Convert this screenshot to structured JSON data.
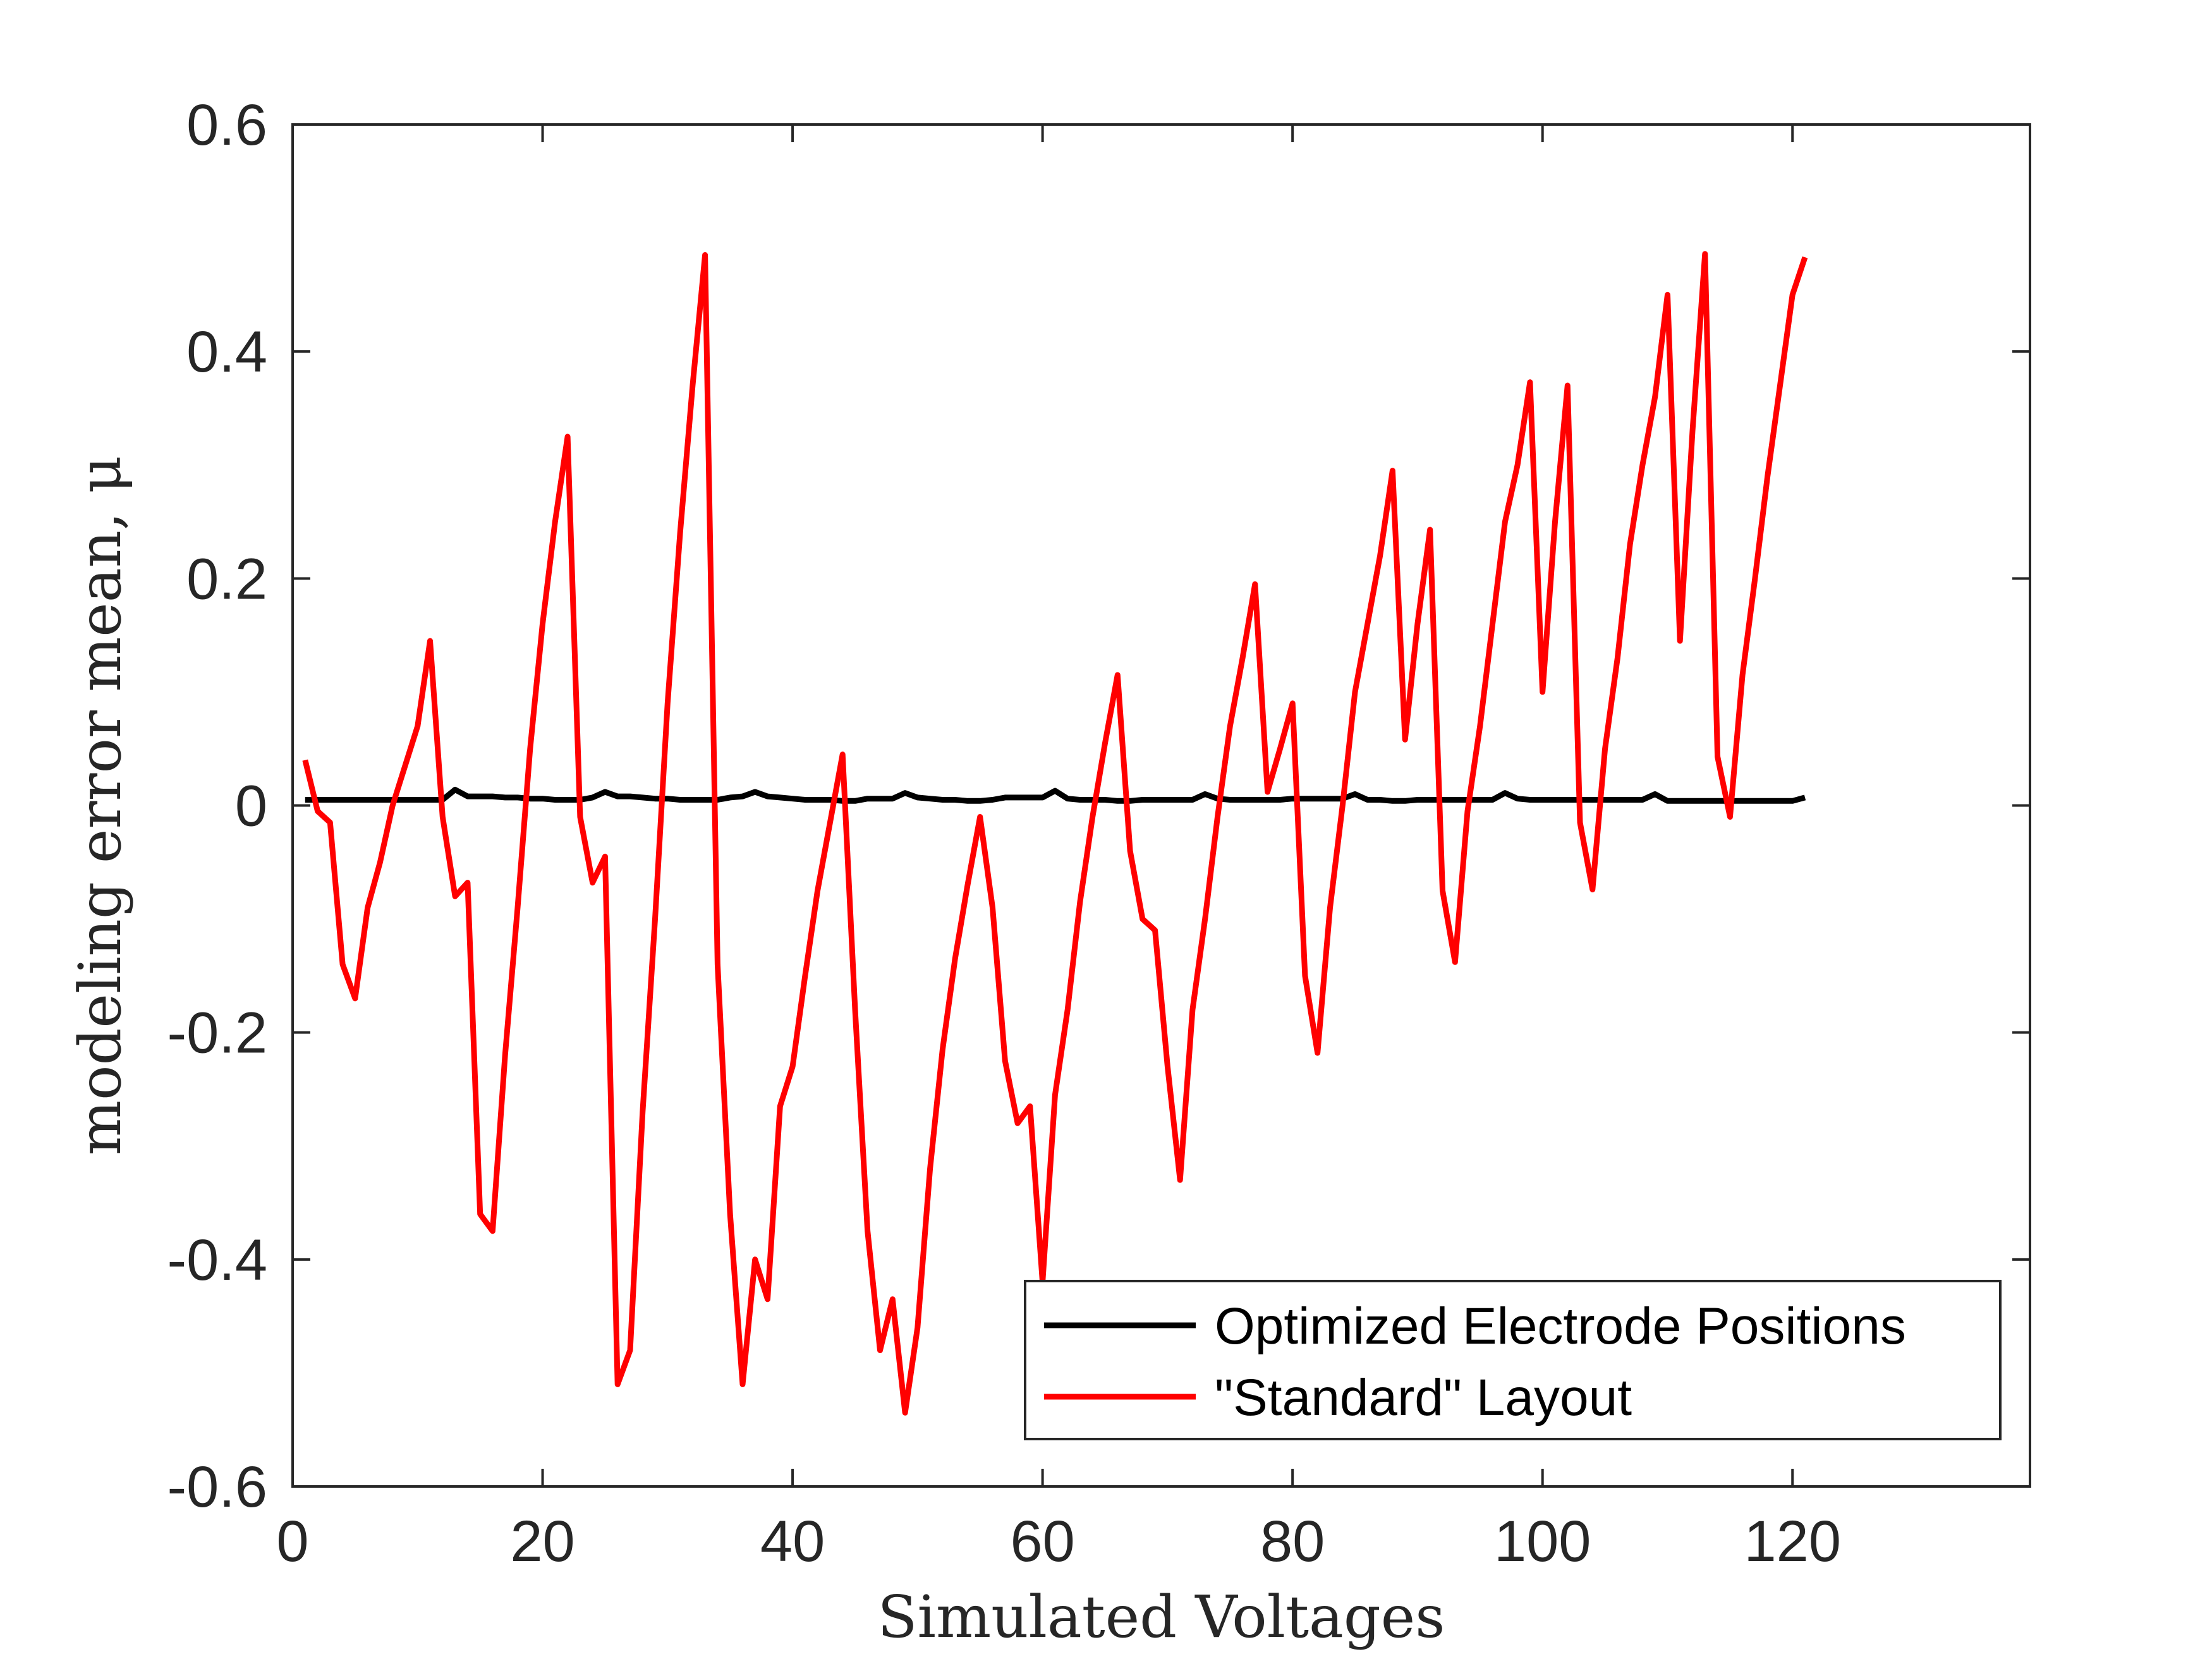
{
  "chart_data": {
    "type": "line",
    "xlabel": "Simulated Voltages",
    "ylabel": "modeling error mean, μ",
    "xlim": [
      0,
      139
    ],
    "ylim": [
      -0.6,
      0.6
    ],
    "xticks": [
      0,
      20,
      40,
      60,
      80,
      100,
      120
    ],
    "yticks": [
      -0.6,
      -0.4,
      -0.2,
      0,
      0.2,
      0.4,
      0.6
    ],
    "xtick_labels": [
      "0",
      "20",
      "40",
      "60",
      "80",
      "100",
      "120"
    ],
    "ytick_labels": [
      "-0.6",
      "-0.4",
      "-0.2",
      "0",
      "0.2",
      "0.4",
      "0.6"
    ],
    "grid": false,
    "legend_position": "bottom-right",
    "series": [
      {
        "name": "Optimized Electrode Positions",
        "color": "#000000",
        "x": [
          1,
          2,
          3,
          4,
          5,
          6,
          7,
          8,
          9,
          10,
          11,
          12,
          13,
          14,
          15,
          16,
          17,
          18,
          19,
          20,
          21,
          22,
          23,
          24,
          25,
          26,
          27,
          28,
          29,
          30,
          31,
          32,
          33,
          34,
          35,
          36,
          37,
          38,
          39,
          40,
          41,
          42,
          43,
          44,
          45,
          46,
          47,
          48,
          49,
          50,
          51,
          52,
          53,
          54,
          55,
          56,
          57,
          58,
          59,
          60,
          61,
          62,
          63,
          64,
          65,
          66,
          67,
          68,
          69,
          70,
          71,
          72,
          73,
          74,
          75,
          76,
          77,
          78,
          79,
          80,
          81,
          82,
          83,
          84,
          85,
          86,
          87,
          88,
          89,
          90,
          91,
          92,
          93,
          94,
          95,
          96,
          97,
          98,
          99,
          100,
          101,
          102,
          103,
          104,
          105,
          106,
          107,
          108,
          109,
          110,
          111,
          112,
          113,
          114,
          115,
          116,
          117,
          118,
          119,
          120,
          121
        ],
        "y": [
          0.005,
          0.005,
          0.005,
          0.005,
          0.005,
          0.005,
          0.005,
          0.005,
          0.005,
          0.005,
          0.005,
          0.005,
          0.014,
          0.008,
          0.008,
          0.008,
          0.007,
          0.007,
          0.006,
          0.006,
          0.005,
          0.005,
          0.005,
          0.007,
          0.012,
          0.008,
          0.008,
          0.007,
          0.006,
          0.006,
          0.005,
          0.005,
          0.005,
          0.005,
          0.007,
          0.008,
          0.012,
          0.008,
          0.007,
          0.006,
          0.005,
          0.005,
          0.005,
          0.004,
          0.004,
          0.006,
          0.006,
          0.006,
          0.011,
          0.007,
          0.006,
          0.005,
          0.005,
          0.004,
          0.004,
          0.005,
          0.007,
          0.007,
          0.007,
          0.007,
          0.013,
          0.006,
          0.005,
          0.005,
          0.005,
          0.004,
          0.004,
          0.005,
          0.005,
          0.005,
          0.005,
          0.005,
          0.01,
          0.006,
          0.005,
          0.005,
          0.005,
          0.005,
          0.005,
          0.006,
          0.006,
          0.006,
          0.006,
          0.006,
          0.01,
          0.005,
          0.005,
          0.004,
          0.004,
          0.005,
          0.005,
          0.005,
          0.005,
          0.005,
          0.005,
          0.005,
          0.011,
          0.006,
          0.005,
          0.005,
          0.005,
          0.005,
          0.005,
          0.005,
          0.005,
          0.005,
          0.005,
          0.005,
          0.01,
          0.004,
          0.004,
          0.004,
          0.004,
          0.004,
          0.004,
          0.004,
          0.004,
          0.004,
          0.004,
          0.004,
          0.007
        ]
      },
      {
        "name": "\"Standard\" Layout",
        "color": "#ff0000",
        "x": [
          1,
          2,
          3,
          4,
          5,
          6,
          7,
          8,
          9,
          10,
          11,
          12,
          13,
          14,
          15,
          16,
          17,
          18,
          19,
          20,
          21,
          22,
          23,
          24,
          25,
          26,
          27,
          28,
          29,
          30,
          31,
          32,
          33,
          34,
          35,
          36,
          37,
          38,
          39,
          40,
          41,
          42,
          43,
          44,
          45,
          46,
          47,
          48,
          49,
          50,
          51,
          52,
          53,
          54,
          55,
          56,
          57,
          58,
          59,
          60,
          61,
          62,
          63,
          64,
          65,
          66,
          67,
          68,
          69,
          70,
          71,
          72,
          73,
          74,
          75,
          76,
          77,
          78,
          79,
          80,
          81,
          82,
          83,
          84,
          85,
          86,
          87,
          88,
          89,
          90,
          91,
          92,
          93,
          94,
          95,
          96,
          97,
          98,
          99,
          100,
          101,
          102,
          103,
          104,
          105,
          106,
          107,
          108,
          109,
          110,
          111,
          112,
          113,
          114,
          115,
          116,
          117,
          118,
          119,
          120,
          121
        ],
        "y": [
          0.04,
          -0.005,
          -0.015,
          -0.14,
          -0.17,
          -0.09,
          -0.05,
          0.0,
          0.035,
          0.07,
          0.145,
          -0.01,
          -0.08,
          -0.068,
          -0.36,
          -0.375,
          -0.22,
          -0.09,
          0.05,
          0.16,
          0.25,
          0.325,
          -0.01,
          -0.068,
          -0.045,
          -0.51,
          -0.48,
          -0.27,
          -0.1,
          0.09,
          0.24,
          0.37,
          0.485,
          -0.14,
          -0.36,
          -0.51,
          -0.4,
          -0.435,
          -0.265,
          -0.23,
          -0.15,
          -0.075,
          -0.015,
          0.045,
          -0.18,
          -0.375,
          -0.48,
          -0.435,
          -0.535,
          -0.46,
          -0.32,
          -0.215,
          -0.135,
          -0.07,
          -0.01,
          -0.09,
          -0.225,
          -0.28,
          -0.265,
          -0.42,
          -0.255,
          -0.18,
          -0.085,
          -0.01,
          0.055,
          0.115,
          -0.04,
          -0.1,
          -0.11,
          -0.23,
          -0.33,
          -0.18,
          -0.1,
          -0.01,
          0.07,
          0.13,
          0.195,
          0.012,
          0.05,
          0.09,
          -0.15,
          -0.218,
          -0.09,
          0.0,
          0.1,
          0.16,
          0.22,
          0.295,
          0.058,
          0.16,
          0.243,
          -0.075,
          -0.138,
          -0.005,
          0.07,
          0.16,
          0.25,
          0.3,
          0.373,
          0.1,
          0.25,
          0.37,
          -0.015,
          -0.074,
          0.05,
          0.13,
          0.23,
          0.3,
          0.36,
          0.45,
          0.145,
          0.33,
          0.486,
          0.043,
          -0.01,
          0.115,
          0.2,
          0.29,
          0.37,
          0.45,
          0.483
        ]
      }
    ]
  }
}
